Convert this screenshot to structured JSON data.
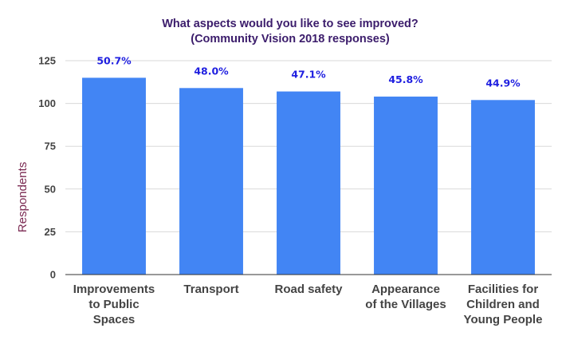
{
  "chart_data": {
    "type": "bar",
    "title": "What aspects would you like to see improved?",
    "subtitle": "(Community Vision 2018 responses)",
    "ylabel": "Respondents",
    "xlabel": "",
    "ylim": [
      0,
      125
    ],
    "yticks": [
      0,
      25,
      50,
      75,
      100,
      125
    ],
    "grid": true,
    "legend": "none",
    "categories": [
      [
        "Improvements",
        "to Public",
        "Spaces"
      ],
      [
        "Transport"
      ],
      [
        "Road safety"
      ],
      [
        "Appearance",
        "of the Villages"
      ],
      [
        "Facilities for",
        "Children and",
        "Young People"
      ]
    ],
    "values": [
      115,
      109,
      107,
      104,
      102
    ],
    "data_labels": [
      "50.7%",
      "48.0%",
      "47.1%",
      "45.8%",
      "44.9%"
    ],
    "bar_color": "#4285f4",
    "label_color": "#1f1fe0",
    "title_color": "#3b1c6b",
    "ylabel_color": "#7b2a52"
  }
}
